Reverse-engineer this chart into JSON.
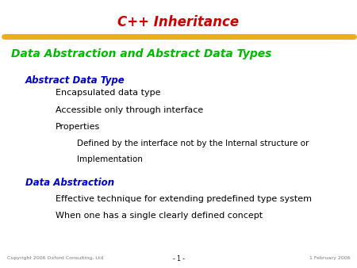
{
  "title": "C++ Inheritance",
  "title_color": "#cc0000",
  "subtitle": "Data Abstraction and Abstract Data Types",
  "subtitle_color": "#00bb00",
  "background_color": "#ffffff",
  "line_color": "#e8a800",
  "footer_left": "Copyright 2006 Oxford Consulting, Ltd",
  "footer_right": "1 February 2006",
  "footer_center": "- 1 -",
  "footer_color": "#777777",
  "section1_header": "Abstract Data Type",
  "section1_header_color": "#0000cc",
  "section1_items": [
    "Encapsulated data type",
    "Accessible only through interface",
    "Properties"
  ],
  "section1_sub_items": [
    "Defined by the interface not by the Internal structure or",
    "Implementation"
  ],
  "section2_header": "Data Abstraction",
  "section2_header_color": "#0000cc",
  "section2_items": [
    "Effective technique for extending predefined type system",
    "When one has a single clearly defined concept"
  ],
  "text_color": "#000000",
  "title_fontsize": 12,
  "subtitle_fontsize": 10,
  "section_header_fontsize": 8.5,
  "body_fontsize": 8,
  "sub_body_fontsize": 7.5,
  "footer_fontsize": 4.5
}
